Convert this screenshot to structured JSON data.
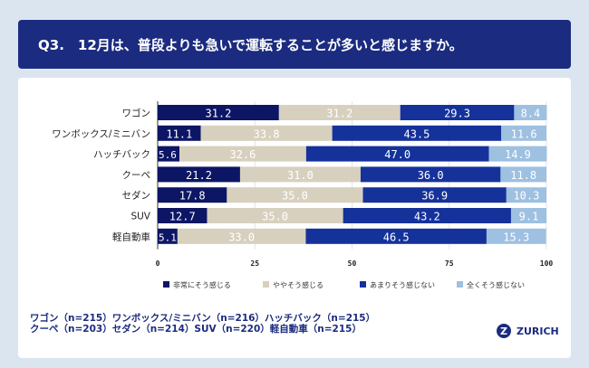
{
  "title": "Q3.　12月は、普段よりも急いで運転することが多いと感じますか。",
  "footnote": {
    "line1": "ワゴン（n=215）ワンボックス/ミニバン（n=216）ハッチバック（n=215）",
    "line2": "クーペ（n=203）セダン（n=214）SUV（n=220）軽自動車（n=215）"
  },
  "logo": {
    "mark": "Z",
    "text": "ZURICH"
  },
  "chart_data": {
    "type": "bar",
    "orientation": "horizontal",
    "stacked": true,
    "categories": [
      "ワゴン",
      "ワンボックス/ミニバン",
      "ハッチバック",
      "クーペ",
      "セダン",
      "SUV",
      "軽自動車"
    ],
    "series": [
      {
        "name": "非常にそう感じる",
        "color": "#0c1665",
        "values": [
          31.2,
          11.1,
          5.6,
          21.2,
          17.8,
          12.7,
          5.1
        ]
      },
      {
        "name": "ややそう感じる",
        "color": "#d7d0be",
        "values": [
          31.2,
          33.8,
          32.6,
          31.0,
          35.0,
          35.0,
          33.0
        ]
      },
      {
        "name": "あまりそう感じない",
        "color": "#15329b",
        "values": [
          29.3,
          43.5,
          47.0,
          36.0,
          36.9,
          43.2,
          46.5
        ]
      },
      {
        "name": "全くそう感じない",
        "color": "#9ec0e1",
        "values": [
          8.4,
          11.6,
          14.9,
          11.8,
          10.3,
          9.1,
          15.3
        ]
      }
    ],
    "xlim": [
      0,
      100
    ],
    "xticks": [
      "0",
      "25",
      "50",
      "75",
      "100"
    ],
    "grid": true,
    "legend": "bottom"
  }
}
